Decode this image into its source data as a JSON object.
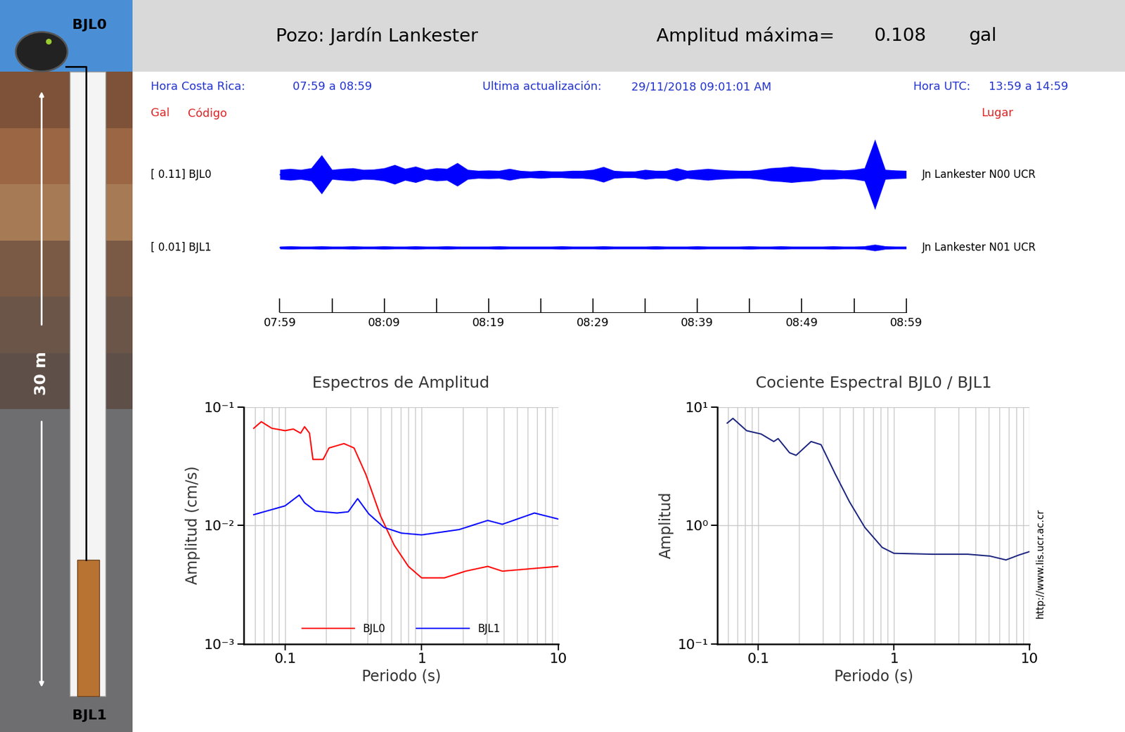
{
  "header": {
    "title": "Pozo: Jardín Lankester",
    "max_amplitude_label": "Amplitud máxima=",
    "max_amplitude": 0.108,
    "max_amplitude_unit": "gal",
    "local_time_label": "Hora Costa Rica:",
    "local_time": "07:59 a 08:59",
    "update_label": "Ultima actualización:",
    "update": "29/11/2018 09:01:01 AM",
    "utc_label": "Hora UTC:",
    "utc_time": "13:59 a 14:59",
    "columns": {
      "gal": "Gal",
      "code": "Código",
      "place": "Lugar"
    }
  },
  "borehole": {
    "top_sensor": "BJL0",
    "bottom_sensor": "BJL1",
    "depth_label": "30 m"
  },
  "chart_data": [
    {
      "type": "seismogram",
      "x": [
        0,
        1,
        2,
        3,
        4,
        5,
        6,
        7,
        8,
        9,
        10,
        11,
        12,
        13,
        14,
        15,
        16,
        17,
        18,
        19,
        20,
        21,
        22,
        23,
        24,
        25,
        26,
        27,
        28,
        29,
        30,
        31,
        32,
        33,
        34,
        35,
        36,
        37,
        38,
        39,
        40,
        41,
        42,
        43,
        44,
        45,
        46,
        47,
        48,
        49,
        50,
        51,
        52,
        53,
        54,
        55,
        56,
        57,
        58,
        59,
        60
      ],
      "xlim": [
        0,
        60
      ],
      "xticks": [
        {
          "value": 0,
          "label": "07:59"
        },
        {
          "value": 10,
          "label": "08:09"
        },
        {
          "value": 20,
          "label": "08:19"
        },
        {
          "value": 30,
          "label": "08:29"
        },
        {
          "value": 40,
          "label": "08:39"
        },
        {
          "value": 50,
          "label": "08:49"
        },
        {
          "value": 60,
          "label": "08:59"
        }
      ],
      "minor_xticks": [
        5,
        15,
        25,
        35,
        45,
        55
      ],
      "ylim": [
        -0.11,
        0.11
      ],
      "tick_labels": "x",
      "series": [
        {
          "name": "BJL0",
          "label": "[ 0.11] BJL0",
          "place": "Jn Lankester N00 UCR",
          "color": "#0000ff",
          "values": [
            0.015,
            0.018,
            0.015,
            0.02,
            0.06,
            0.015,
            0.018,
            0.02,
            0.015,
            0.016,
            0.02,
            0.03,
            0.018,
            0.025,
            0.015,
            0.02,
            0.018,
            0.036,
            0.015,
            0.012,
            0.013,
            0.012,
            0.018,
            0.012,
            0.01,
            0.012,
            0.01,
            0.01,
            0.012,
            0.012,
            0.015,
            0.024,
            0.012,
            0.01,
            0.01,
            0.015,
            0.012,
            0.012,
            0.02,
            0.012,
            0.015,
            0.018,
            0.015,
            0.013,
            0.012,
            0.012,
            0.015,
            0.02,
            0.022,
            0.025,
            0.022,
            0.02,
            0.015,
            0.015,
            0.013,
            0.015,
            0.02,
            0.108,
            0.015,
            0.013,
            0.012
          ]
        },
        {
          "name": "BJL1",
          "label": "[ 0.01] BJL1",
          "place": "Jn Lankester N01 UCR",
          "color": "#0000ff",
          "values": [
            0.004,
            0.005,
            0.004,
            0.004,
            0.005,
            0.004,
            0.004,
            0.005,
            0.004,
            0.004,
            0.005,
            0.004,
            0.004,
            0.005,
            0.004,
            0.004,
            0.005,
            0.004,
            0.004,
            0.004,
            0.004,
            0.005,
            0.004,
            0.004,
            0.004,
            0.004,
            0.004,
            0.005,
            0.004,
            0.004,
            0.004,
            0.005,
            0.004,
            0.004,
            0.004,
            0.004,
            0.005,
            0.004,
            0.004,
            0.004,
            0.005,
            0.004,
            0.004,
            0.004,
            0.004,
            0.005,
            0.004,
            0.004,
            0.005,
            0.004,
            0.004,
            0.004,
            0.004,
            0.005,
            0.004,
            0.004,
            0.005,
            0.01,
            0.005,
            0.004,
            0.004
          ]
        }
      ]
    },
    {
      "type": "line",
      "title": "Espectros de Amplitud",
      "xlabel": "Periodo (s)",
      "ylabel": "Amplitud (cm/s)",
      "log": true,
      "xlim": [
        0.05,
        10
      ],
      "ylim": [
        0.001,
        0.1
      ],
      "xticks": [
        0.1,
        1,
        10
      ],
      "yticks": [
        {
          "value": 0.001,
          "label": "10⁻³"
        },
        {
          "value": 0.01,
          "label": "10⁻²"
        },
        {
          "value": 0.1,
          "label": "10⁻¹"
        }
      ],
      "grid": true,
      "xgrid": [
        0.06,
        0.07,
        0.08,
        0.09,
        0.1,
        0.2,
        0.3,
        0.4,
        0.5,
        0.6,
        0.7,
        0.8,
        0.9,
        1,
        2,
        3,
        4,
        5,
        6,
        7,
        8,
        9,
        10
      ],
      "legend": "lower center",
      "series": [
        {
          "name": "BJL0",
          "color": "#ff0000",
          "x": [
            0.059,
            0.067,
            0.08,
            0.1,
            0.115,
            0.13,
            0.139,
            0.151,
            0.16,
            0.19,
            0.21,
            0.27,
            0.32,
            0.39,
            0.5,
            0.63,
            0.8,
            1.0,
            1.47,
            2.1,
            3.05,
            3.9,
            6.3,
            10
          ],
          "values": [
            0.066,
            0.075,
            0.066,
            0.063,
            0.065,
            0.06,
            0.068,
            0.06,
            0.036,
            0.036,
            0.045,
            0.049,
            0.045,
            0.027,
            0.012,
            0.0068,
            0.0045,
            0.0036,
            0.0036,
            0.0041,
            0.0045,
            0.0041,
            0.0043,
            0.0045
          ]
        },
        {
          "name": "BJL1",
          "color": "#0000ff",
          "x": [
            0.059,
            0.1,
            0.127,
            0.139,
            0.167,
            0.24,
            0.29,
            0.34,
            0.41,
            0.53,
            0.71,
            1.0,
            1.88,
            3.05,
            3.9,
            6.7,
            10
          ],
          "values": [
            0.0123,
            0.0146,
            0.018,
            0.0155,
            0.0132,
            0.0127,
            0.013,
            0.0168,
            0.0125,
            0.0096,
            0.0086,
            0.0083,
            0.0092,
            0.011,
            0.0102,
            0.0127,
            0.0113
          ]
        }
      ]
    },
    {
      "type": "line",
      "title": "Cociente Espectral BJL0 / BJL1",
      "xlabel": "Periodo (s)",
      "ylabel": "Amplitud",
      "annotation": "http://www.lis.ucr.ac.cr",
      "log": true,
      "xlim": [
        0.05,
        10
      ],
      "ylim": [
        0.1,
        10
      ],
      "xticks": [
        0.1,
        1,
        10
      ],
      "yticks": [
        {
          "value": 0.1,
          "label": "10⁻¹"
        },
        {
          "value": 1,
          "label": "10⁰"
        },
        {
          "value": 10,
          "label": "10¹"
        }
      ],
      "grid": true,
      "xgrid": [
        0.06,
        0.07,
        0.08,
        0.09,
        0.1,
        0.2,
        0.3,
        0.4,
        0.5,
        0.6,
        0.7,
        0.8,
        0.9,
        1,
        2,
        3,
        4,
        5,
        6,
        7,
        8,
        9,
        10
      ],
      "color": "#1a237e",
      "x": [
        0.059,
        0.065,
        0.082,
        0.105,
        0.13,
        0.14,
        0.17,
        0.19,
        0.245,
        0.29,
        0.37,
        0.47,
        0.61,
        0.82,
        1.0,
        1.92,
        3.5,
        5.1,
        6.7,
        8.3,
        10
      ],
      "values": [
        7.3,
        8.0,
        6.3,
        5.9,
        5.1,
        5.4,
        4.1,
        3.9,
        5.1,
        4.8,
        2.7,
        1.58,
        0.96,
        0.65,
        0.58,
        0.57,
        0.57,
        0.55,
        0.51,
        0.56,
        0.6
      ]
    }
  ]
}
